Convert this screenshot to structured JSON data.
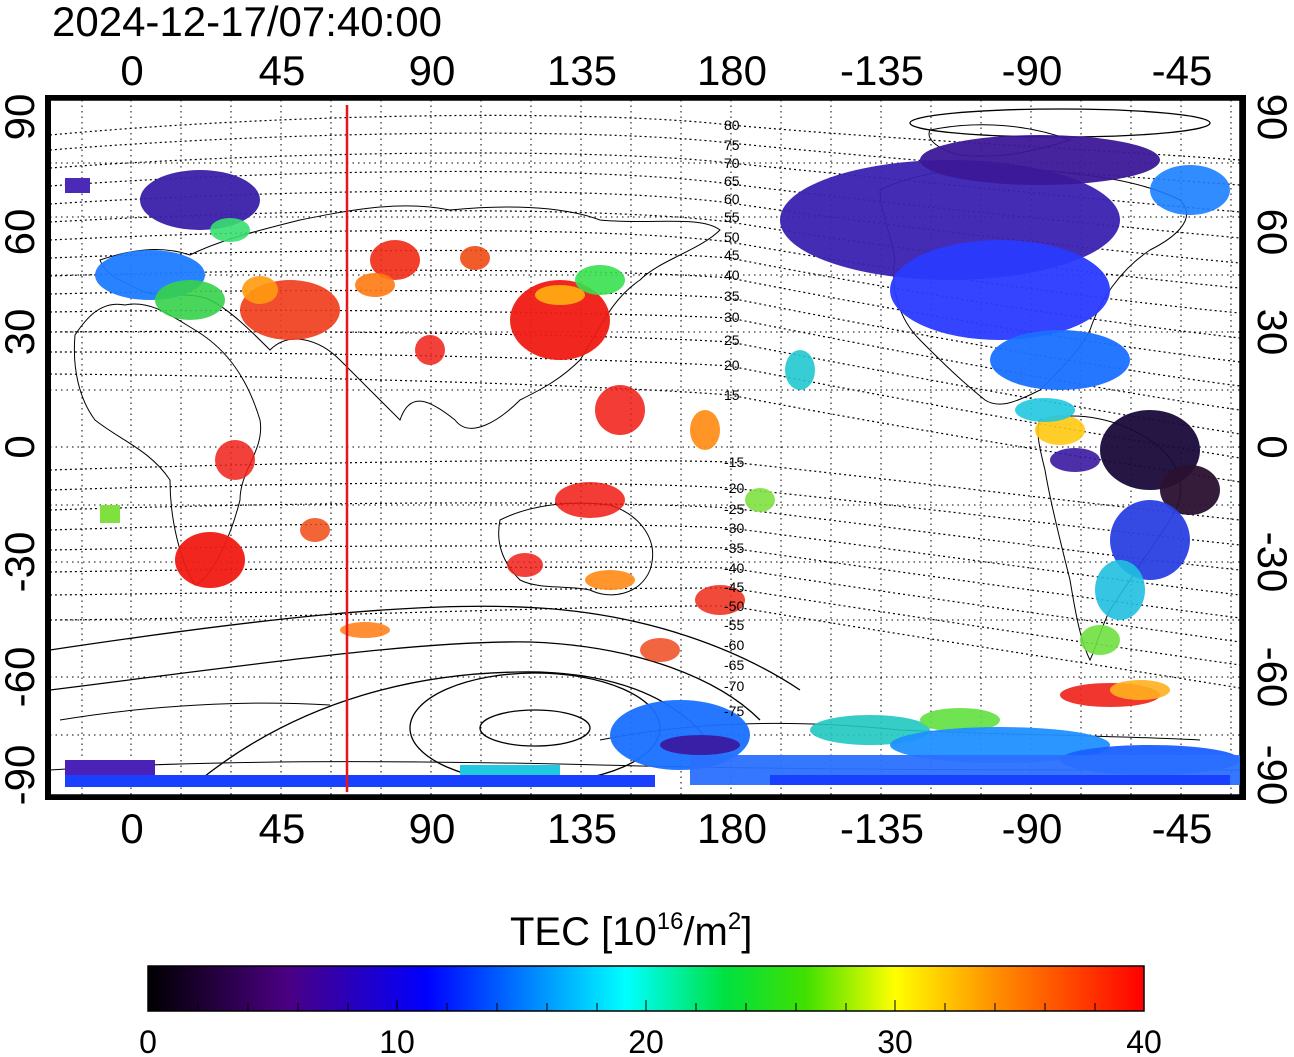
{
  "title": "2024-12-17/07:40:00",
  "map": {
    "lon_ticks_top": [
      "0",
      "45",
      "90",
      "135",
      "180",
      "-135",
      "-90",
      "-45"
    ],
    "lon_ticks_bottom": [
      "0",
      "45",
      "90",
      "135",
      "180",
      "-135",
      "-90",
      "-45"
    ],
    "lat_ticks_left": [
      "90",
      "60",
      "30",
      "0",
      "-30",
      "-60",
      "-90"
    ],
    "lat_ticks_right": [
      "90",
      "60",
      "30",
      "0",
      "-30",
      "-60",
      "-90"
    ],
    "contour_labels": [
      "80",
      "75",
      "70",
      "65",
      "60",
      "55",
      "50",
      "45",
      "40",
      "35",
      "30",
      "25",
      "20",
      "15",
      "-15",
      "-20",
      "-25",
      "-30",
      "-35",
      "-40",
      "-45",
      "-50",
      "-55",
      "-60",
      "-65",
      "-70",
      "-75"
    ],
    "marker_line_color": "#e8141c"
  },
  "colorbar": {
    "label": "TEC  [10",
    "label_sup1": "16",
    "label_mid": "/m",
    "label_sup2": "2",
    "label_end": "]",
    "ticks": [
      "0",
      "10",
      "20",
      "30",
      "40"
    ],
    "stops": [
      "#000000",
      "#4b0082",
      "#0000ff",
      "#00ffff",
      "#00ff00",
      "#ffff00",
      "#ff8c00",
      "#ff0000"
    ]
  }
}
